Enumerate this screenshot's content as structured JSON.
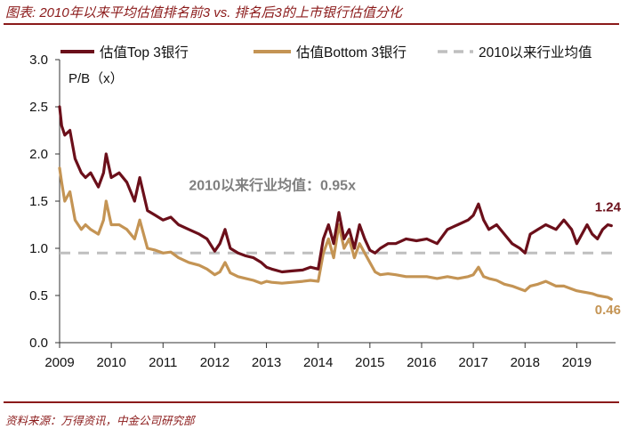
{
  "figure": {
    "title": "图表: 2010年以来平均估值排名前3 vs. 排名后3的上市银行估值分化",
    "source": "资料来源：万得资讯，中金公司研究部"
  },
  "chart_data": {
    "type": "line",
    "title": "2010年以来平均估值排名前3 vs. 排名后3的上市银行估值分化",
    "ylabel": "P/B（x）",
    "xlabel": "",
    "xlim": [
      2009.0,
      2019.75
    ],
    "ylim": [
      0.0,
      3.0
    ],
    "x_ticks": [
      "2009",
      "2010",
      "2011",
      "2012",
      "2013",
      "2014",
      "2015",
      "2016",
      "2017",
      "2018",
      "2019"
    ],
    "y_ticks": [
      "0.0",
      "0.5",
      "1.0",
      "1.5",
      "2.0",
      "2.5",
      "3.0"
    ],
    "legend": {
      "position": "top"
    },
    "series": [
      {
        "name": "估值Top 3银行",
        "color": "#6b0f1a",
        "style": "solid",
        "x": [
          2009.0,
          2009.04,
          2009.1,
          2009.2,
          2009.3,
          2009.42,
          2009.5,
          2009.6,
          2009.75,
          2009.85,
          2009.9,
          2010.0,
          2010.15,
          2010.3,
          2010.45,
          2010.55,
          2010.7,
          2010.85,
          2011.0,
          2011.15,
          2011.3,
          2011.5,
          2011.7,
          2011.85,
          2012.0,
          2012.1,
          2012.2,
          2012.3,
          2012.45,
          2012.6,
          2012.75,
          2012.9,
          2013.0,
          2013.1,
          2013.3,
          2013.5,
          2013.7,
          2013.85,
          2014.0,
          2014.1,
          2014.2,
          2014.3,
          2014.4,
          2014.5,
          2014.6,
          2014.7,
          2014.8,
          2014.9,
          2015.0,
          2015.1,
          2015.2,
          2015.35,
          2015.5,
          2015.7,
          2015.9,
          2016.1,
          2016.3,
          2016.5,
          2016.7,
          2016.9,
          2017.0,
          2017.1,
          2017.2,
          2017.3,
          2017.45,
          2017.6,
          2017.75,
          2017.9,
          2018.0,
          2018.1,
          2018.25,
          2018.4,
          2018.6,
          2018.75,
          2018.9,
          2019.0,
          2019.1,
          2019.2,
          2019.3,
          2019.4,
          2019.5,
          2019.6,
          2019.67
        ],
        "values": [
          2.5,
          2.3,
          2.2,
          2.25,
          1.95,
          1.8,
          1.75,
          1.8,
          1.65,
          1.8,
          2.0,
          1.75,
          1.8,
          1.7,
          1.5,
          1.75,
          1.4,
          1.35,
          1.3,
          1.33,
          1.25,
          1.2,
          1.15,
          1.1,
          0.97,
          1.05,
          1.2,
          1.0,
          0.95,
          0.92,
          0.9,
          0.85,
          0.8,
          0.78,
          0.75,
          0.76,
          0.77,
          0.8,
          0.78,
          1.1,
          1.25,
          1.05,
          1.38,
          1.1,
          1.2,
          1.0,
          1.25,
          1.1,
          0.98,
          0.95,
          1.0,
          1.05,
          1.05,
          1.1,
          1.08,
          1.1,
          1.05,
          1.2,
          1.25,
          1.3,
          1.35,
          1.47,
          1.3,
          1.2,
          1.25,
          1.15,
          1.05,
          1.0,
          0.95,
          1.15,
          1.2,
          1.25,
          1.2,
          1.3,
          1.2,
          1.05,
          1.15,
          1.25,
          1.15,
          1.1,
          1.2,
          1.25,
          1.24
        ]
      },
      {
        "name": "估值Bottom 3银行",
        "color": "#c49454",
        "style": "solid",
        "x": [
          2009.0,
          2009.04,
          2009.1,
          2009.2,
          2009.3,
          2009.42,
          2009.5,
          2009.6,
          2009.75,
          2009.85,
          2009.9,
          2010.0,
          2010.15,
          2010.3,
          2010.45,
          2010.55,
          2010.7,
          2010.85,
          2011.0,
          2011.15,
          2011.3,
          2011.5,
          2011.7,
          2011.85,
          2012.0,
          2012.1,
          2012.2,
          2012.3,
          2012.45,
          2012.6,
          2012.75,
          2012.9,
          2013.0,
          2013.1,
          2013.3,
          2013.5,
          2013.7,
          2013.85,
          2014.0,
          2014.1,
          2014.2,
          2014.3,
          2014.4,
          2014.5,
          2014.6,
          2014.7,
          2014.8,
          2014.9,
          2015.0,
          2015.1,
          2015.2,
          2015.35,
          2015.5,
          2015.7,
          2015.9,
          2016.1,
          2016.3,
          2016.5,
          2016.7,
          2016.9,
          2017.0,
          2017.1,
          2017.2,
          2017.3,
          2017.45,
          2017.6,
          2017.75,
          2017.9,
          2018.0,
          2018.1,
          2018.25,
          2018.4,
          2018.6,
          2018.75,
          2018.9,
          2019.0,
          2019.1,
          2019.2,
          2019.3,
          2019.4,
          2019.5,
          2019.6,
          2019.67
        ],
        "values": [
          1.85,
          1.7,
          1.5,
          1.6,
          1.3,
          1.2,
          1.25,
          1.2,
          1.15,
          1.3,
          1.5,
          1.25,
          1.25,
          1.2,
          1.1,
          1.3,
          1.0,
          0.98,
          0.95,
          0.96,
          0.9,
          0.85,
          0.82,
          0.78,
          0.72,
          0.75,
          0.85,
          0.74,
          0.7,
          0.68,
          0.66,
          0.63,
          0.65,
          0.64,
          0.63,
          0.64,
          0.65,
          0.66,
          0.65,
          0.95,
          1.1,
          0.9,
          1.25,
          1.0,
          1.1,
          0.9,
          1.05,
          0.95,
          0.85,
          0.75,
          0.72,
          0.73,
          0.72,
          0.7,
          0.7,
          0.7,
          0.68,
          0.7,
          0.68,
          0.7,
          0.72,
          0.8,
          0.7,
          0.68,
          0.66,
          0.62,
          0.6,
          0.57,
          0.55,
          0.6,
          0.62,
          0.65,
          0.6,
          0.6,
          0.57,
          0.55,
          0.54,
          0.53,
          0.52,
          0.5,
          0.49,
          0.48,
          0.46
        ]
      },
      {
        "name": "2010以来行业均值",
        "color": "#bfbfbf",
        "style": "dashed",
        "x": [
          2009.0,
          2019.75
        ],
        "values": [
          0.95,
          0.95
        ]
      }
    ],
    "annotations": [
      {
        "text": "2010以来行业均值：0.95x",
        "x": 2011.5,
        "y": 1.62,
        "color": "#7f7f7f"
      },
      {
        "text": "1.24",
        "x": 2019.35,
        "y": 1.39,
        "color": "#6b0f1a"
      },
      {
        "text": "0.46",
        "x": 2019.35,
        "y": 0.3,
        "color": "#c49454"
      }
    ]
  }
}
